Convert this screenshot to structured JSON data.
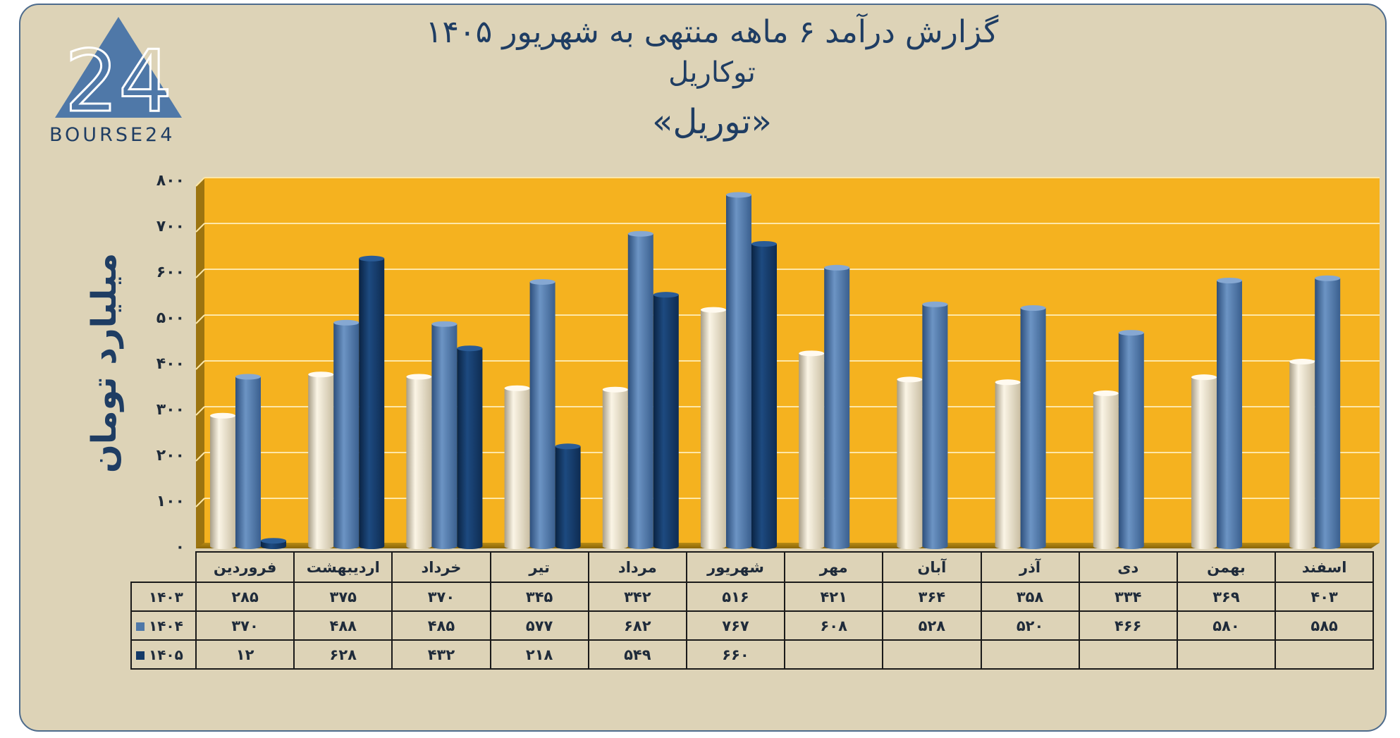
{
  "title": {
    "line1": "گزارش  درآمد ۶ ماهه منتهی به شهریور ۱۴۰۵",
    "line2": "توکاریل",
    "line3": "«توریل»"
  },
  "logo": {
    "mark": "24",
    "text": "BOURSE24"
  },
  "colors": {
    "background": "#ddd3b7",
    "plot": "#f5b21f",
    "series_1403": "#efe6cf",
    "series_1404": "#4f78a8",
    "series_1405": "#143a68",
    "text": "#1f3d63"
  },
  "chart_data": {
    "type": "bar",
    "ylabel": "میلیارد تومان",
    "ylim": [
      0,
      800
    ],
    "yticks": [
      "۰",
      "۱۰۰",
      "۲۰۰",
      "۳۰۰",
      "۴۰۰",
      "۵۰۰",
      "۶۰۰",
      "۷۰۰",
      "۸۰۰"
    ],
    "grid": true,
    "categories": [
      "فروردین",
      "اردیبهشت",
      "خرداد",
      "تیر",
      "مرداد",
      "شهریور",
      "مهر",
      "آبان",
      "آذر",
      "دی",
      "بهمن",
      "اسفند"
    ],
    "series": [
      {
        "name": "۱۴۰۳",
        "values": [
          285,
          375,
          370,
          345,
          342,
          516,
          421,
          364,
          358,
          334,
          369,
          403
        ],
        "labels": [
          "۲۸۵",
          "۳۷۵",
          "۳۷۰",
          "۳۴۵",
          "۳۴۲",
          "۵۱۶",
          "۴۲۱",
          "۳۶۴",
          "۳۵۸",
          "۳۳۴",
          "۳۶۹",
          "۴۰۳"
        ]
      },
      {
        "name": "۱۴۰۴",
        "values": [
          370,
          488,
          485,
          577,
          682,
          767,
          608,
          528,
          520,
          466,
          580,
          585
        ],
        "labels": [
          "۳۷۰",
          "۴۸۸",
          "۴۸۵",
          "۵۷۷",
          "۶۸۲",
          "۷۶۷",
          "۶۰۸",
          "۵۲۸",
          "۵۲۰",
          "۴۶۶",
          "۵۸۰",
          "۵۸۵"
        ]
      },
      {
        "name": "۱۴۰۵",
        "values": [
          12,
          628,
          432,
          218,
          549,
          660,
          null,
          null,
          null,
          null,
          null,
          null
        ],
        "labels": [
          "۱۲",
          "۶۲۸",
          "۴۳۲",
          "۲۱۸",
          "۵۴۹",
          "۶۶۰",
          "",
          "",
          "",
          "",
          "",
          ""
        ]
      }
    ]
  }
}
